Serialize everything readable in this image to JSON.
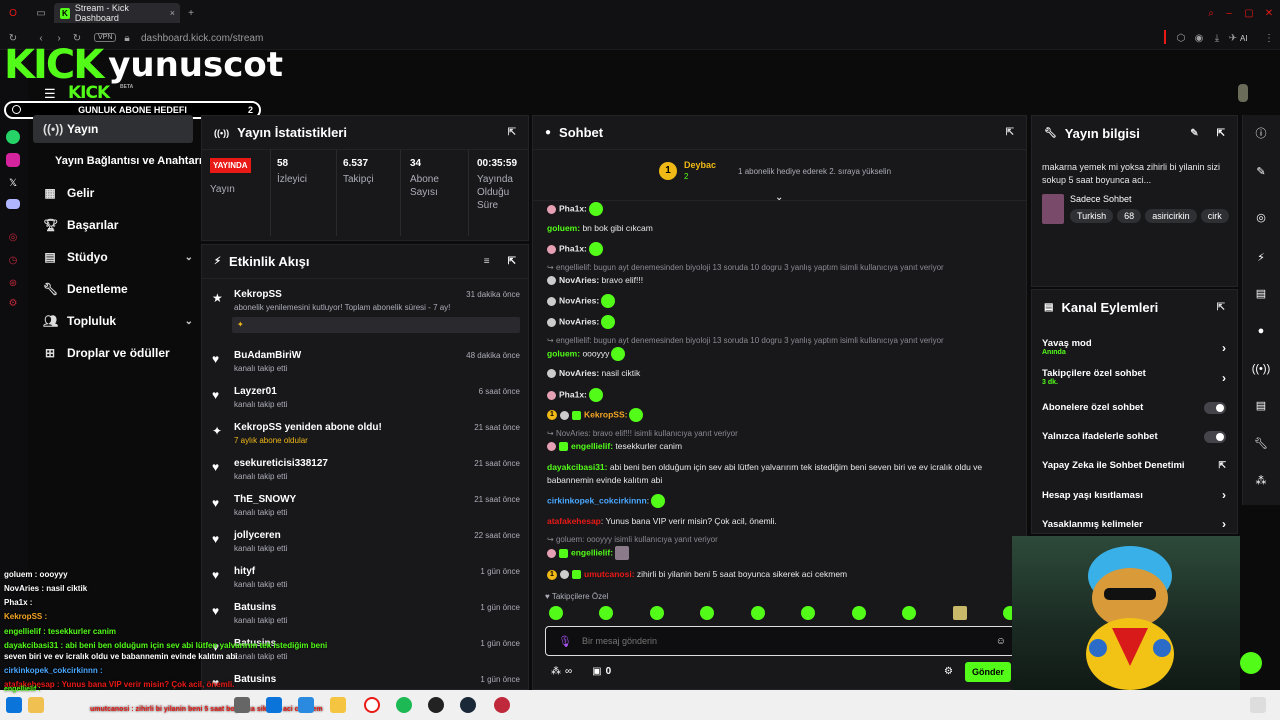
{
  "browser": {
    "tab_title": "Stream - Kick Dashboard",
    "vpn": "VPN",
    "url": "dashboard.kick.com/stream",
    "ai_label": "AI"
  },
  "brand": {
    "logo": "KICK",
    "channel": "yunuscot",
    "logo_small": "KICK",
    "beta": "BETA",
    "goal_label": "GUNLUK ABONE HEDEFI",
    "goal_value": "2"
  },
  "sidebar": {
    "items": [
      {
        "label": "Yayın",
        "icon": "broadcast-icon"
      },
      {
        "label": "Yayın Bağlantısı ve Anahtarı",
        "icon": ""
      },
      {
        "label": "Gelir",
        "icon": "revenue-icon"
      },
      {
        "label": "Başarılar",
        "icon": "trophy-icon"
      },
      {
        "label": "Stüdyo",
        "icon": "studio-icon"
      },
      {
        "label": "Denetleme",
        "icon": "wrench-icon"
      },
      {
        "label": "Topluluk",
        "icon": "community-icon"
      },
      {
        "label": "Droplar ve ödüller",
        "icon": "gift-icon"
      }
    ]
  },
  "stats": {
    "title": "Yayın İstatistikleri",
    "live_badge": "YAYINDA",
    "items": [
      {
        "value": "",
        "label": "Yayın"
      },
      {
        "value": "58",
        "label": "İzleyici"
      },
      {
        "value": "6.537",
        "label": "Takipçi"
      },
      {
        "value": "34",
        "label": "Abone Sayısı"
      },
      {
        "value": "00:35:59",
        "label": "Yayında Olduğu Süre"
      }
    ]
  },
  "feed": {
    "title": "Etkinlik Akışı",
    "events": [
      {
        "name": "KekropSS",
        "sub": "abonelik yenilemesini kutluyor! Toplam abonelik süresi - 7 ay!",
        "time": "31 dakika önce"
      },
      {
        "name": "BuAdamBiriW",
        "sub": "kanalı takip etti",
        "time": "48 dakika önce"
      },
      {
        "name": "Layzer01",
        "sub": "kanalı takip etti",
        "time": "6 saat önce"
      },
      {
        "name": "KekropSS yeniden abone oldu!",
        "sub": "7 aylık abone oldular",
        "time": "21 saat önce"
      },
      {
        "name": "esekureticisi338127",
        "sub": "kanalı takip etti",
        "time": "21 saat önce"
      },
      {
        "name": "ThE_SNOWY",
        "sub": "kanalı takip etti",
        "time": "21 saat önce"
      },
      {
        "name": "jollyceren",
        "sub": "kanalı takip etti",
        "time": "22 saat önce"
      },
      {
        "name": "hityf",
        "sub": "kanalı takip etti",
        "time": "1 gün önce"
      },
      {
        "name": "Batusins",
        "sub": "kanalı takip etti",
        "time": "1 gün önce"
      },
      {
        "name": "Batusins",
        "sub": "kanalı takip etti",
        "time": "1 gün önce"
      },
      {
        "name": "Batusins",
        "sub": "",
        "time": "1 gün önce"
      }
    ]
  },
  "chat": {
    "title": "Sohbet",
    "pinned_user": "Deybac",
    "pinned_count": "2",
    "pinned_text": "1 abonelik hediye ederek 2. sıraya yükselin",
    "lines": [
      {
        "user": "Pha1x:",
        "text": "",
        "color": "#ffffff"
      },
      {
        "user": "goluem:",
        "text": "bn bok gibi cıkcam",
        "color": "#53fc18"
      },
      {
        "user": "Pha1x:",
        "text": "",
        "color": "#ffffff"
      },
      {
        "reply": "engellielif: bugun ayt denemesinden biyoloji 13 soruda 10 dogru 3 yanlış yaptım isimli kullanıcıya yanıt veriyor"
      },
      {
        "user": "NovAries:",
        "text": "bravo elif!!!",
        "color": "#ffffff"
      },
      {
        "user": "NovAries:",
        "text": "",
        "color": "#ffffff"
      },
      {
        "user": "NovAries:",
        "text": "",
        "color": "#ffffff"
      },
      {
        "reply": "engellielif: bugun ayt denemesinden biyoloji 13 soruda 10 dogru 3 yanlış yaptım isimli kullanıcıya yanıt veriyor"
      },
      {
        "user": "goluem:",
        "text": "oooyyy",
        "color": "#53fc18"
      },
      {
        "user": "NovAries:",
        "text": "nasil ciktik",
        "color": "#ffffff"
      },
      {
        "user": "Pha1x:",
        "text": "",
        "color": "#ffffff"
      },
      {
        "user": "KekropSS:",
        "text": "",
        "color": "#f5a623"
      },
      {
        "reply": "NovAries: bravo elif!!! isimli kullanıcıya yanıt veriyor"
      },
      {
        "user": "engellielif:",
        "text": "tesekkurler canim",
        "color": "#53fc18"
      },
      {
        "user": "dayakcibasi31:",
        "text": "abi beni ben olduğum için sev abi lütfen yalvarırım tek istediğim beni seven biri ve ev icralık oldu ve babannemin evinde kalıtım abi",
        "color": "#53fc18"
      },
      {
        "user": "cirkinkopek_cokcirkinnn",
        "text": "",
        "color": "#4aa8ff"
      },
      {
        "user": "atafakehesap",
        "text": ": Yunus bana VIP verir misin? Çok acil, önemli.",
        "color": "#e91916"
      },
      {
        "reply": "goluem: oooyyy isimli kullanıcıya yanıt veriyor"
      },
      {
        "user": "engellielif:",
        "text": "",
        "color": "#53fc18"
      },
      {
        "user": "umutcanosi:",
        "text": "zihirli bi yilanin beni 5 saat boyunca sikerek aci cekmem",
        "color": "#e91916"
      }
    ],
    "followers_only": "Takipçilere Özel",
    "input_placeholder": "Bir mesaj gönderin",
    "points": "0",
    "send_label": "Gönder"
  },
  "stream_info": {
    "title": "Yayın bilgisi",
    "description": "makarna yemek mi yoksa zihirli bi yilanin sizi sokup 5 saat boyunca aci...",
    "category": "Sadece Sohbet",
    "tags": [
      "Turkish",
      "68",
      "asiricirkin",
      "cirk"
    ]
  },
  "channel_actions": {
    "title": "Kanal Eylemleri",
    "items": [
      {
        "label": "Yavaş mod",
        "sub": "Anında",
        "control": "arrow"
      },
      {
        "label": "Takipçilere özel sohbet",
        "sub": "3 dk.",
        "control": "arrow"
      },
      {
        "label": "Abonelere özel sohbet",
        "sub": "",
        "control": "toggle"
      },
      {
        "label": "Yalnızca ifadelerle sohbet",
        "sub": "",
        "control": "toggle"
      },
      {
        "label": "Yapay Zeka ile Sohbet Denetimi",
        "sub": "",
        "control": "external"
      },
      {
        "label": "Hesap yaşı kısıtlaması",
        "sub": "",
        "control": "arrow"
      },
      {
        "label": "Yasaklanmış kelimeler",
        "sub": "",
        "control": "arrow"
      }
    ]
  },
  "overlay_chat": [
    {
      "text": "goluem : oooyyy",
      "color": "#53fc18"
    },
    {
      "text": "NovAries : nasil ciktik",
      "color": "#ffffff"
    },
    {
      "text": "Pha1x :",
      "color": "#ffffff"
    },
    {
      "text": "KekropSS :",
      "color": "#f5a623"
    },
    {
      "text": "engellielif : tesekkurler canim",
      "color": "#53fc18"
    },
    {
      "text": "dayakcibasi31 : abi beni ben olduğum için sev abi lütfen yalvarırım tek istediğim beni",
      "color": "#53fc18"
    },
    {
      "text": "seven biri ve ev icralık oldu ve babannemin evinde kalıtım abi",
      "color": "#ffffff"
    },
    {
      "text": "cirkinkopek_cokcirkinnn :",
      "color": "#4aa8ff"
    },
    {
      "text": "atafakehesap : Yunus bana VIP verir misin? Çok acil, önemli.",
      "color": "#e91916"
    },
    {
      "text": "engellielif :",
      "color": "#53fc18"
    },
    {
      "text": "umutcanosi : zihirli bi yilanin beni 5 saat boyunca sikerek aci cekmem",
      "color": "#e91916"
    }
  ],
  "colors": {
    "accent": "#53fc18",
    "live": "#e91916",
    "panel": "#18181b"
  }
}
